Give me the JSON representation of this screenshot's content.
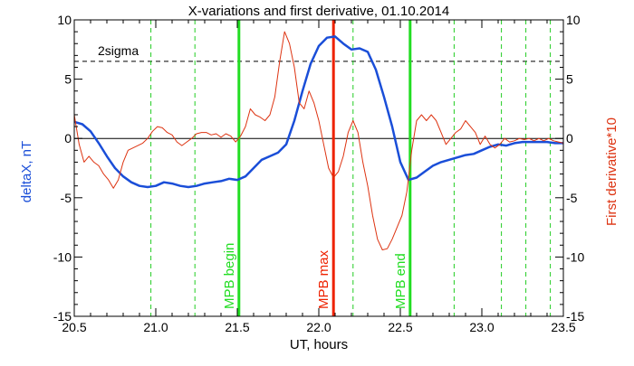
{
  "chart_data": {
    "type": "line",
    "title": "X-variations and first derivative, 01.10.2014",
    "xlabel": "UT, hours",
    "ylabel_left": "deltaX, nT",
    "ylabel_right": "First derivative*10",
    "xlim": [
      20.5,
      23.5
    ],
    "ylim": [
      -15,
      10
    ],
    "x_ticks": [
      "20.5",
      "21.0",
      "21.5",
      "22.0",
      "22.5",
      "23.0",
      "23.5"
    ],
    "y_ticks_left": [
      "-15",
      "-10",
      "-5",
      "0",
      "5",
      "10"
    ],
    "y_ticks_right": [
      "-15",
      "-10",
      "-5",
      "0",
      "5",
      "10"
    ],
    "grid": false,
    "threshold": {
      "label": "2sigma",
      "value": 6.5
    },
    "zero_line": 0,
    "green_dashed_x": [
      20.97,
      21.24,
      22.21,
      22.83,
      23.12,
      23.27,
      23.42
    ],
    "vertical_markers": [
      {
        "x": 21.51,
        "label": "MPB begin",
        "color": "#22dd22"
      },
      {
        "x": 22.09,
        "label": "MPB max",
        "color": "#ee2200"
      },
      {
        "x": 22.56,
        "label": "MPB end",
        "color": "#22dd22"
      }
    ],
    "series": [
      {
        "name": "deltaX, nT",
        "color": "#1a4ed8",
        "axis": "left",
        "x": [
          20.5,
          20.55,
          20.6,
          20.65,
          20.7,
          20.75,
          20.8,
          20.85,
          20.9,
          20.95,
          21.0,
          21.05,
          21.1,
          21.15,
          21.2,
          21.25,
          21.3,
          21.35,
          21.4,
          21.45,
          21.5,
          21.55,
          21.6,
          21.65,
          21.7,
          21.75,
          21.8,
          21.85,
          21.9,
          21.95,
          22.0,
          22.05,
          22.1,
          22.15,
          22.2,
          22.25,
          22.3,
          22.35,
          22.4,
          22.45,
          22.5,
          22.55,
          22.6,
          22.65,
          22.7,
          22.75,
          22.8,
          22.85,
          22.9,
          22.95,
          23.0,
          23.05,
          23.1,
          23.15,
          23.2,
          23.25,
          23.3,
          23.35,
          23.4,
          23.45,
          23.5
        ],
        "y": [
          1.4,
          1.2,
          0.6,
          -0.4,
          -1.5,
          -2.5,
          -3.2,
          -3.7,
          -4.0,
          -4.1,
          -4.0,
          -3.7,
          -3.8,
          -4.0,
          -4.1,
          -4.0,
          -3.8,
          -3.7,
          -3.6,
          -3.4,
          -3.5,
          -3.2,
          -2.5,
          -1.8,
          -1.5,
          -1.2,
          -0.5,
          1.5,
          4.0,
          6.3,
          7.8,
          8.5,
          8.6,
          8.0,
          7.5,
          7.6,
          7.3,
          5.8,
          3.5,
          1.0,
          -2.0,
          -3.5,
          -3.3,
          -2.8,
          -2.3,
          -2.0,
          -1.8,
          -1.6,
          -1.4,
          -1.3,
          -1.0,
          -0.7,
          -0.5,
          -0.6,
          -0.4,
          -0.3,
          -0.3,
          -0.3,
          -0.3,
          -0.4,
          -0.4
        ]
      },
      {
        "name": "First derivative*10",
        "color": "#dd3311",
        "axis": "right",
        "x": [
          20.5,
          20.53,
          20.56,
          20.59,
          20.62,
          20.65,
          20.68,
          20.71,
          20.74,
          20.77,
          20.8,
          20.83,
          20.86,
          20.89,
          20.92,
          20.95,
          20.98,
          21.01,
          21.04,
          21.07,
          21.1,
          21.13,
          21.16,
          21.19,
          21.22,
          21.25,
          21.28,
          21.31,
          21.34,
          21.37,
          21.4,
          21.43,
          21.46,
          21.49,
          21.52,
          21.55,
          21.58,
          21.61,
          21.64,
          21.67,
          21.7,
          21.73,
          21.76,
          21.79,
          21.82,
          21.85,
          21.88,
          21.91,
          21.94,
          21.97,
          22.0,
          22.03,
          22.06,
          22.09,
          22.12,
          22.15,
          22.18,
          22.21,
          22.24,
          22.27,
          22.3,
          22.33,
          22.36,
          22.39,
          22.42,
          22.45,
          22.48,
          22.51,
          22.54,
          22.57,
          22.6,
          22.63,
          22.66,
          22.69,
          22.72,
          22.75,
          22.78,
          22.81,
          22.84,
          22.87,
          22.9,
          22.93,
          22.96,
          22.99,
          23.02,
          23.05,
          23.08,
          23.11,
          23.14,
          23.17,
          23.2,
          23.23,
          23.26,
          23.29,
          23.32,
          23.35,
          23.38,
          23.41,
          23.44,
          23.47,
          23.5
        ],
        "y": [
          2.0,
          -0.5,
          -2.0,
          -1.5,
          -2.0,
          -2.3,
          -3.0,
          -3.5,
          -4.2,
          -3.5,
          -2.0,
          -1.0,
          -0.8,
          -0.6,
          -0.4,
          0.0,
          0.6,
          1.0,
          0.9,
          0.5,
          0.3,
          -0.3,
          -0.6,
          -0.3,
          0.0,
          0.4,
          0.5,
          0.5,
          0.3,
          0.4,
          0.1,
          0.4,
          0.2,
          -0.3,
          0.2,
          1.0,
          2.5,
          2.0,
          1.8,
          1.5,
          2.0,
          3.5,
          6.5,
          9.0,
          8.0,
          6.0,
          3.0,
          2.5,
          4.0,
          3.0,
          1.5,
          -0.5,
          -2.5,
          -3.3,
          -2.8,
          -1.5,
          0.5,
          1.5,
          0.5,
          -2.0,
          -4.0,
          -6.5,
          -8.5,
          -9.4,
          -9.3,
          -8.5,
          -7.5,
          -6.5,
          -4.5,
          -1.0,
          1.5,
          2.0,
          1.5,
          2.0,
          1.5,
          0.5,
          -0.5,
          0.0,
          0.5,
          0.8,
          1.5,
          1.0,
          0.5,
          -0.5,
          0.2,
          -0.5,
          -0.8,
          -0.5,
          0.0,
          -0.3,
          -0.2,
          0.0,
          -0.1,
          0.0,
          -0.2,
          0.0,
          -0.2,
          0.0,
          -0.2,
          -0.3,
          -0.4
        ]
      }
    ]
  }
}
